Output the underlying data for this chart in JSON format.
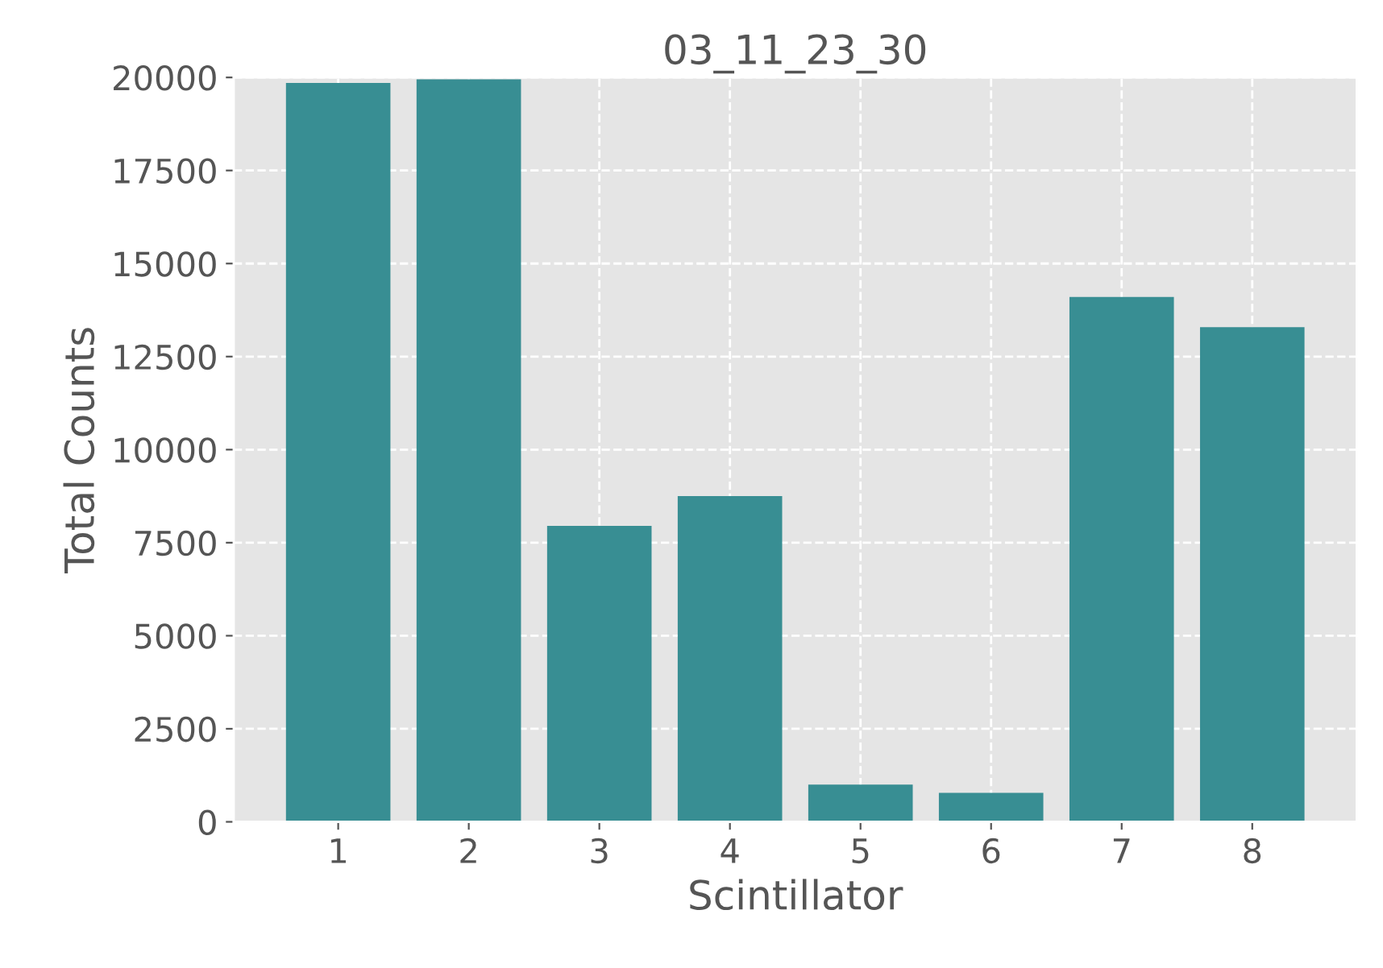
{
  "chart_data": {
    "type": "bar",
    "title": "03_11_23_30",
    "xlabel": "Scintillator",
    "ylabel": "Total Counts",
    "categories": [
      "1",
      "2",
      "3",
      "4",
      "5",
      "6",
      "7",
      "8"
    ],
    "values": [
      19850,
      19950,
      7950,
      8750,
      1000,
      780,
      14100,
      13290
    ],
    "color": "#388e93",
    "ylim": [
      0,
      20000
    ],
    "yticks": [
      0,
      2500,
      5000,
      7500,
      10000,
      12500,
      15000,
      17500,
      20000
    ],
    "grid": true,
    "line_style": "dashed"
  }
}
